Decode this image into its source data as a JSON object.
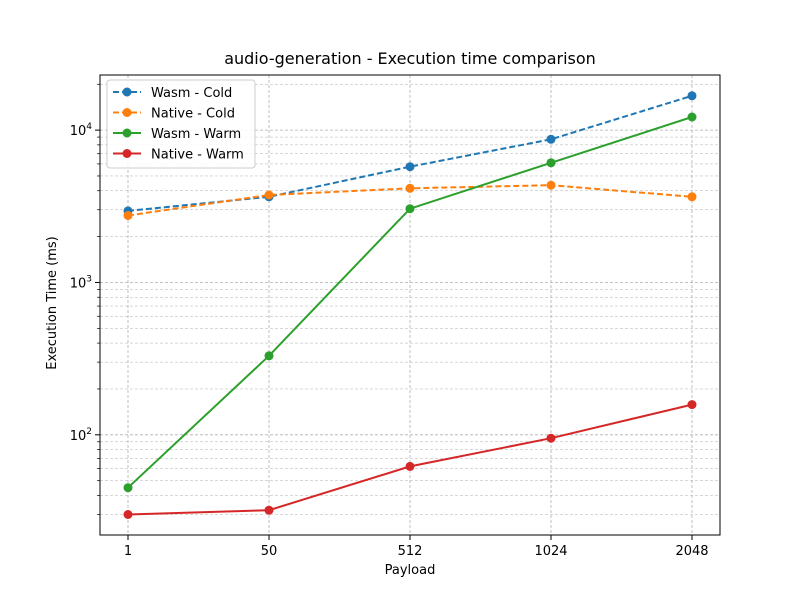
{
  "chart_data": {
    "type": "line",
    "title": "audio-generation - Execution time comparison",
    "xlabel": "Payload",
    "ylabel": "Execution Time (ms)",
    "categories": [
      "1",
      "50",
      "512",
      "1024",
      "2048"
    ],
    "yscale": "log",
    "ylim": [
      22,
      23000
    ],
    "yticks": [
      {
        "value": 100,
        "label": "10^2"
      },
      {
        "value": 1000,
        "label": "10^3"
      },
      {
        "value": 10000,
        "label": "10^4"
      }
    ],
    "grid": true,
    "legend_position": "upper-left",
    "series": [
      {
        "name": "Wasm - Cold",
        "color": "#1f77b4",
        "linestyle": "dashed",
        "marker": "circle",
        "values": [
          2950,
          3650,
          5750,
          8700,
          16800
        ]
      },
      {
        "name": "Native - Cold",
        "color": "#ff7f0e",
        "linestyle": "dashed",
        "marker": "circle",
        "values": [
          2750,
          3750,
          4150,
          4350,
          3650
        ]
      },
      {
        "name": "Wasm - Warm",
        "color": "#2ca02c",
        "linestyle": "solid",
        "marker": "circle",
        "values": [
          45,
          330,
          3050,
          6100,
          12200
        ]
      },
      {
        "name": "Native - Warm",
        "color": "#d62728",
        "linestyle": "solid",
        "marker": "circle",
        "values": [
          30,
          32,
          62,
          95,
          158
        ]
      }
    ]
  }
}
